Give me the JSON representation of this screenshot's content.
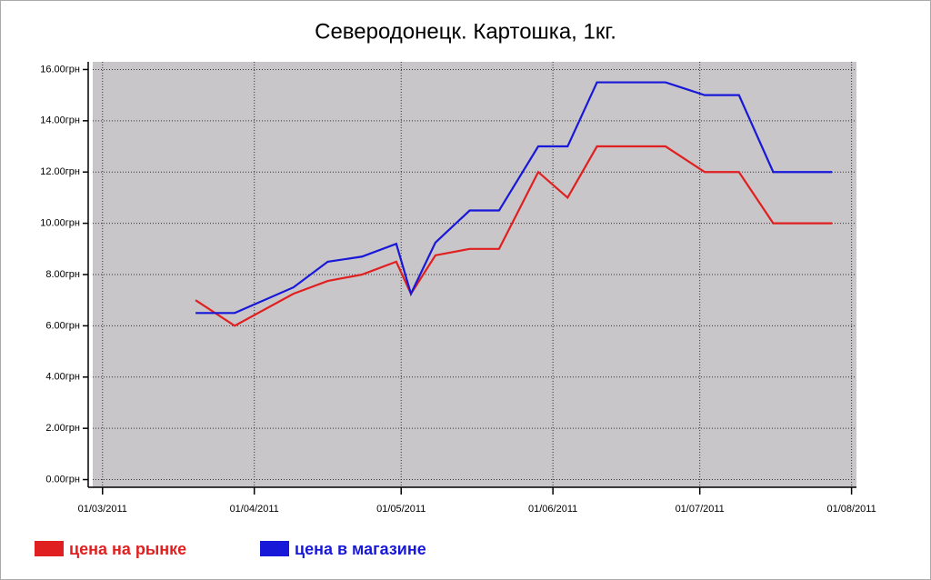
{
  "chart_data": {
    "type": "line",
    "title": "Северодонецк. Картошка, 1кг.",
    "x": [
      "2011-03-20",
      "2011-03-28",
      "2011-04-09",
      "2011-04-16",
      "2011-04-23",
      "2011-04-30",
      "2011-05-03",
      "2011-05-08",
      "2011-05-15",
      "2011-05-21",
      "2011-05-29",
      "2011-06-04",
      "2011-06-10",
      "2011-06-18",
      "2011-06-24",
      "2011-07-02",
      "2011-07-09",
      "2011-07-16",
      "2011-07-28"
    ],
    "series": [
      {
        "name": "цена на рынке",
        "color": "#e02020",
        "values": [
          7.0,
          6.0,
          7.25,
          7.75,
          8.0,
          8.5,
          7.25,
          8.75,
          9.0,
          9.0,
          12.0,
          11.0,
          13.0,
          13.0,
          13.0,
          12.0,
          12.0,
          10.0,
          10.0
        ]
      },
      {
        "name": "цена в магазине",
        "color": "#1818d8",
        "values": [
          6.5,
          6.5,
          7.5,
          8.5,
          8.7,
          9.2,
          7.25,
          9.25,
          10.5,
          10.5,
          13.0,
          13.0,
          15.5,
          15.5,
          15.5,
          15.0,
          15.0,
          12.0,
          12.0
        ]
      }
    ],
    "xlim": [
      "2011-02-27",
      "2011-08-02"
    ],
    "xticks": [
      {
        "value": "2011-03-01",
        "label": "01/03/2011"
      },
      {
        "value": "2011-04-01",
        "label": "01/04/2011"
      },
      {
        "value": "2011-05-01",
        "label": "01/05/2011"
      },
      {
        "value": "2011-06-01",
        "label": "01/06/2011"
      },
      {
        "value": "2011-07-01",
        "label": "01/07/2011"
      },
      {
        "value": "2011-08-01",
        "label": "01/08/2011"
      }
    ],
    "ylim": [
      -0.3,
      16.3
    ],
    "yticks": [
      {
        "value": 0,
        "label": "0.00грн"
      },
      {
        "value": 2,
        "label": "2.00грн"
      },
      {
        "value": 4,
        "label": "4.00грн"
      },
      {
        "value": 6,
        "label": "6.00грн"
      },
      {
        "value": 8,
        "label": "8.00грн"
      },
      {
        "value": 10,
        "label": "10.00грн"
      },
      {
        "value": 12,
        "label": "12.00грн"
      },
      {
        "value": 14,
        "label": "14.00грн"
      },
      {
        "value": 16,
        "label": "16.00грн"
      }
    ],
    "grid": true
  }
}
